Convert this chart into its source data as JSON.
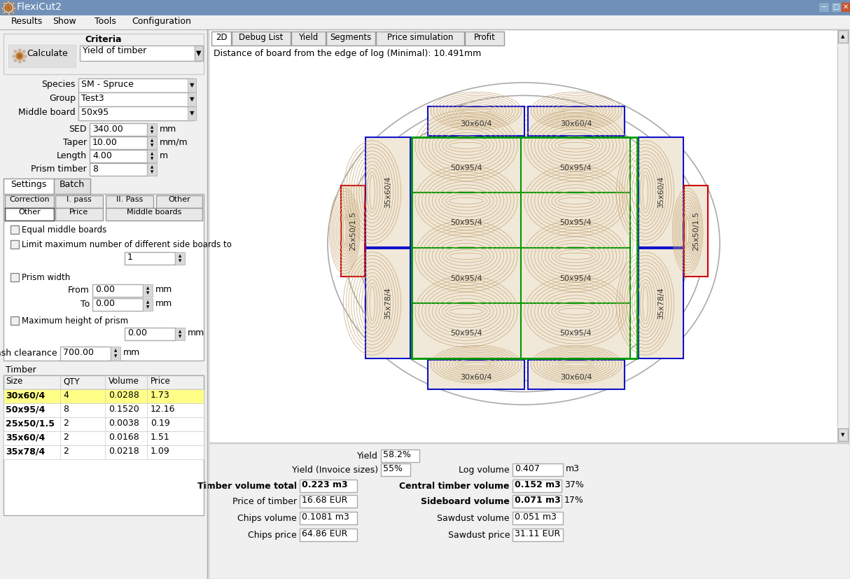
{
  "title": "FlexiCut2",
  "menu_items": [
    "Results",
    "Show",
    "Tools",
    "Configuration"
  ],
  "tabs_right": [
    "2D",
    "Debug List",
    "Yield",
    "Segments",
    "Price simulation",
    "Profit"
  ],
  "distance_text": "Distance of board from the edge of log (Minimal): 10.491mm",
  "criteria_value": "Yield of timber",
  "species_value": "SM - Spruce",
  "group_value": "Test3",
  "middle_board_value": "50x95",
  "sed_value": "340.00",
  "taper_value": "10.00",
  "length_value": "4.00",
  "prism_value": "8",
  "table_headers": [
    "Size",
    "QTY",
    "Volume",
    "Price"
  ],
  "table_rows": [
    {
      "size": "30x60/4",
      "qty": "4",
      "volume": "0.0288",
      "price": "1.73",
      "highlight": true
    },
    {
      "size": "50x95/4",
      "qty": "8",
      "volume": "0.1520",
      "price": "12.16",
      "highlight": false
    },
    {
      "size": "25x50/1.5",
      "qty": "2",
      "volume": "0.0038",
      "price": "0.19",
      "highlight": false
    },
    {
      "size": "35x60/4",
      "qty": "2",
      "volume": "0.0168",
      "price": "1.51",
      "highlight": false
    },
    {
      "size": "35x78/4",
      "qty": "2",
      "volume": "0.0218",
      "price": "1.09",
      "highlight": false
    }
  ],
  "yield_value": "58.2%",
  "yield_inv_value": "55%",
  "log_vol_value": "0.407",
  "timber_vol_value": "0.223 m3",
  "central_vol_value": "0.152 m3",
  "central_vol_pct": "37%",
  "price_timber_value": "16.68 EUR",
  "sideboard_vol_value": "0.071 m3",
  "sideboard_vol_pct": "17%",
  "chips_vol_value": "0.1081 m3",
  "sawdust_vol_value": "0.051 m3",
  "chips_price_value": "64.86 EUR",
  "sawdust_price_value": "31.11 EUR",
  "highlight_yellow": "#ffff88",
  "titlebar_color": "#6a8fc0",
  "left_panel_color": "#f0f0f0",
  "white": "#ffffff",
  "light_gray": "#e8e8e8",
  "mid_gray": "#cccccc",
  "dark_gray": "#888888",
  "log_outer_color": "#aaaaaa",
  "grain_color": "#c8a878",
  "board_fill": "#f0e8d8",
  "green_border": "#009900",
  "blue_border": "#1111cc",
  "red_border": "#cc0000"
}
